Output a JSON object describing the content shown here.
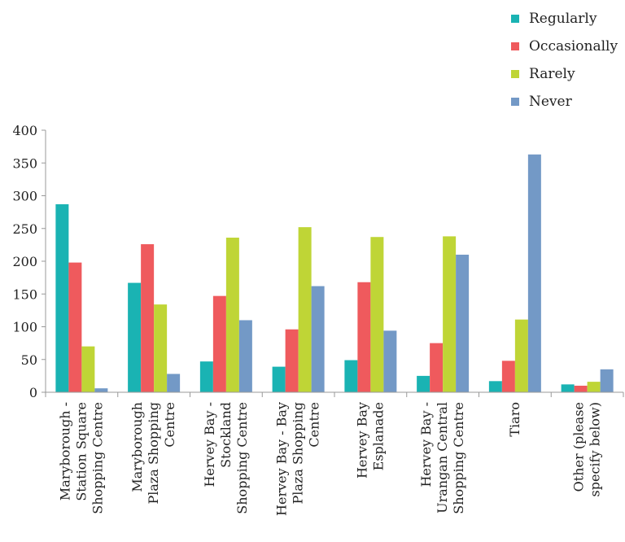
{
  "chart_data": {
    "type": "bar",
    "categories": [
      [
        "Maryborough -",
        "Station Square",
        "Shopping Centre"
      ],
      [
        "Maryborough",
        "Plaza Shopping",
        "Centre"
      ],
      [
        "Hervey Bay -",
        "Stockland",
        "Shopping Centre"
      ],
      [
        "Hervey Bay - Bay",
        "Plaza Shopping",
        "Centre"
      ],
      [
        "Hervey Bay",
        "Esplanade"
      ],
      [
        "Hervey Bay -",
        "Urangan Central",
        "Shopping Centre"
      ],
      [
        "Tiaro"
      ],
      [
        "Other (please",
        "specify below)"
      ]
    ],
    "series": [
      {
        "name": "Regularly",
        "color": "#1ab3b3",
        "values": [
          287,
          167,
          47,
          39,
          49,
          25,
          17,
          12
        ]
      },
      {
        "name": "Occasionally",
        "color": "#ef5a5d",
        "values": [
          198,
          226,
          147,
          96,
          168,
          75,
          48,
          10
        ]
      },
      {
        "name": "Rarely",
        "color": "#bfd536",
        "values": [
          70,
          134,
          236,
          252,
          237,
          238,
          111,
          16
        ]
      },
      {
        "name": "Never",
        "color": "#7399c6",
        "values": [
          6,
          28,
          110,
          162,
          94,
          210,
          363,
          35
        ]
      }
    ],
    "ylim": [
      0,
      400
    ],
    "yticks": [
      0,
      50,
      100,
      150,
      200,
      250,
      300,
      350,
      400
    ],
    "legend_position": "top-right",
    "grid": false
  }
}
